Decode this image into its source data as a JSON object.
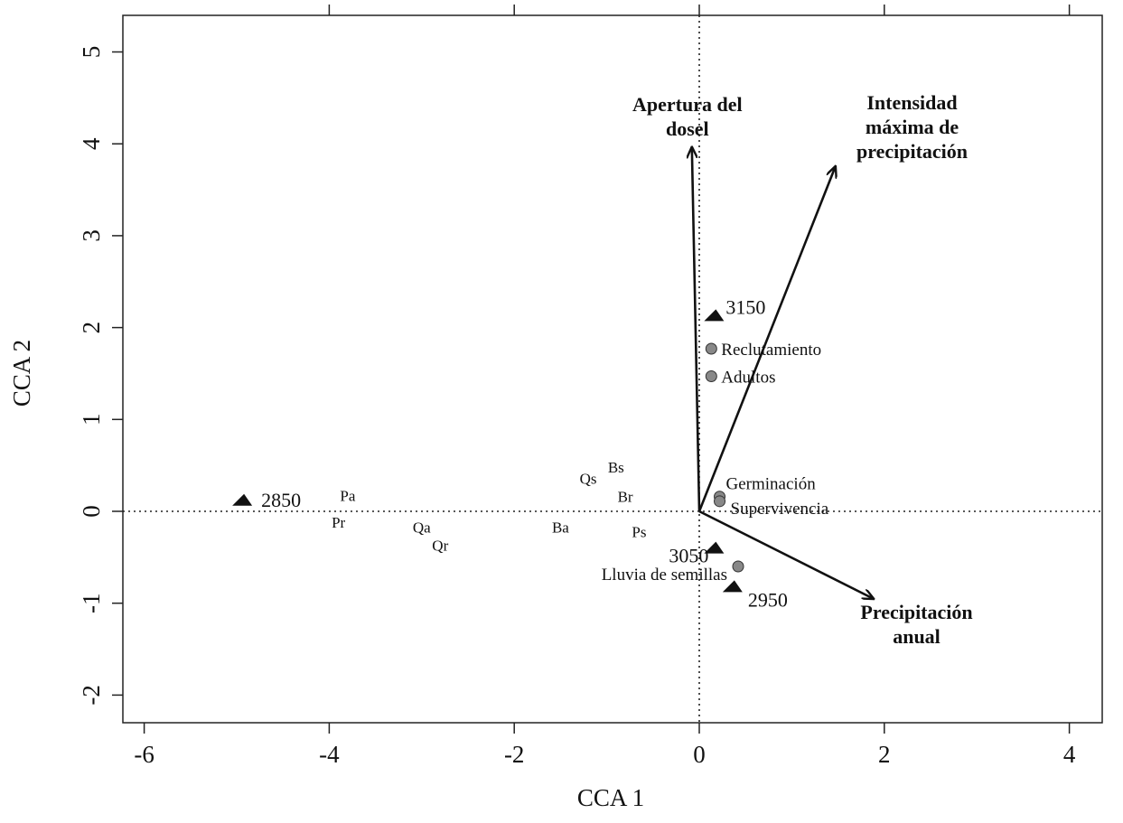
{
  "chart_data": {
    "type": "scatter",
    "title": "",
    "xlabel": "CCA 1",
    "ylabel": "CCA 2",
    "xlim": [
      -6.3,
      4.3
    ],
    "ylim": [
      -2.3,
      5.3
    ],
    "x_ticks": [
      -6,
      -4,
      -2,
      0,
      2,
      4
    ],
    "y_ticks": [
      -2,
      -1,
      0,
      1,
      2,
      3,
      4,
      5
    ],
    "x_tick_labels": [
      "-6",
      "-4",
      "-2",
      "0",
      "2",
      "4"
    ],
    "y_tick_labels": [
      "-2",
      "-1",
      "0",
      "1",
      "2",
      "3",
      "4",
      "5"
    ],
    "top_ticks": [
      -4,
      -2,
      0,
      2,
      4
    ],
    "grid": false,
    "reference_lines": {
      "x": 0,
      "y": 0,
      "style": "dotted"
    },
    "sites": [
      {
        "label": "2850",
        "x": -4.95,
        "y": 0.12
      },
      {
        "label": "3150",
        "x": 0.15,
        "y": 2.13
      },
      {
        "label": "3050",
        "x": 0.15,
        "y": -0.4
      },
      {
        "label": "2950",
        "x": 0.35,
        "y": -0.82
      }
    ],
    "variables": [
      {
        "label": "Reclutamiento",
        "x": 0.13,
        "y": 1.77
      },
      {
        "label": "Adultos",
        "x": 0.13,
        "y": 1.47
      },
      {
        "label": "Germinación",
        "x": 0.22,
        "y": 0.16
      },
      {
        "label": "Supervivencia",
        "x": 0.22,
        "y": 0.11
      },
      {
        "label": "Lluvia de semillas",
        "x": 0.42,
        "y": -0.6
      }
    ],
    "species": [
      {
        "label": "Pa",
        "x": -3.8,
        "y": 0.17
      },
      {
        "label": "Pr",
        "x": -3.9,
        "y": -0.12
      },
      {
        "label": "Qa",
        "x": -3.0,
        "y": -0.17
      },
      {
        "label": "Qr",
        "x": -2.8,
        "y": -0.37
      },
      {
        "label": "Qs",
        "x": -1.2,
        "y": 0.36
      },
      {
        "label": "Bs",
        "x": -0.9,
        "y": 0.48
      },
      {
        "label": "Br",
        "x": -0.8,
        "y": 0.16
      },
      {
        "label": "Ba",
        "x": -1.5,
        "y": -0.17
      },
      {
        "label": "Ps",
        "x": -0.65,
        "y": -0.22
      }
    ],
    "vectors": [
      {
        "lines": [
          "Apertura del",
          "dosel"
        ],
        "x": -0.08,
        "y": 3.96
      },
      {
        "lines": [
          "Intensidad",
          "máxima de",
          "precipitación"
        ],
        "x": 1.47,
        "y": 3.75
      },
      {
        "lines": [
          "Precipitación",
          "anual"
        ],
        "x": 1.88,
        "y": -0.95
      }
    ]
  }
}
